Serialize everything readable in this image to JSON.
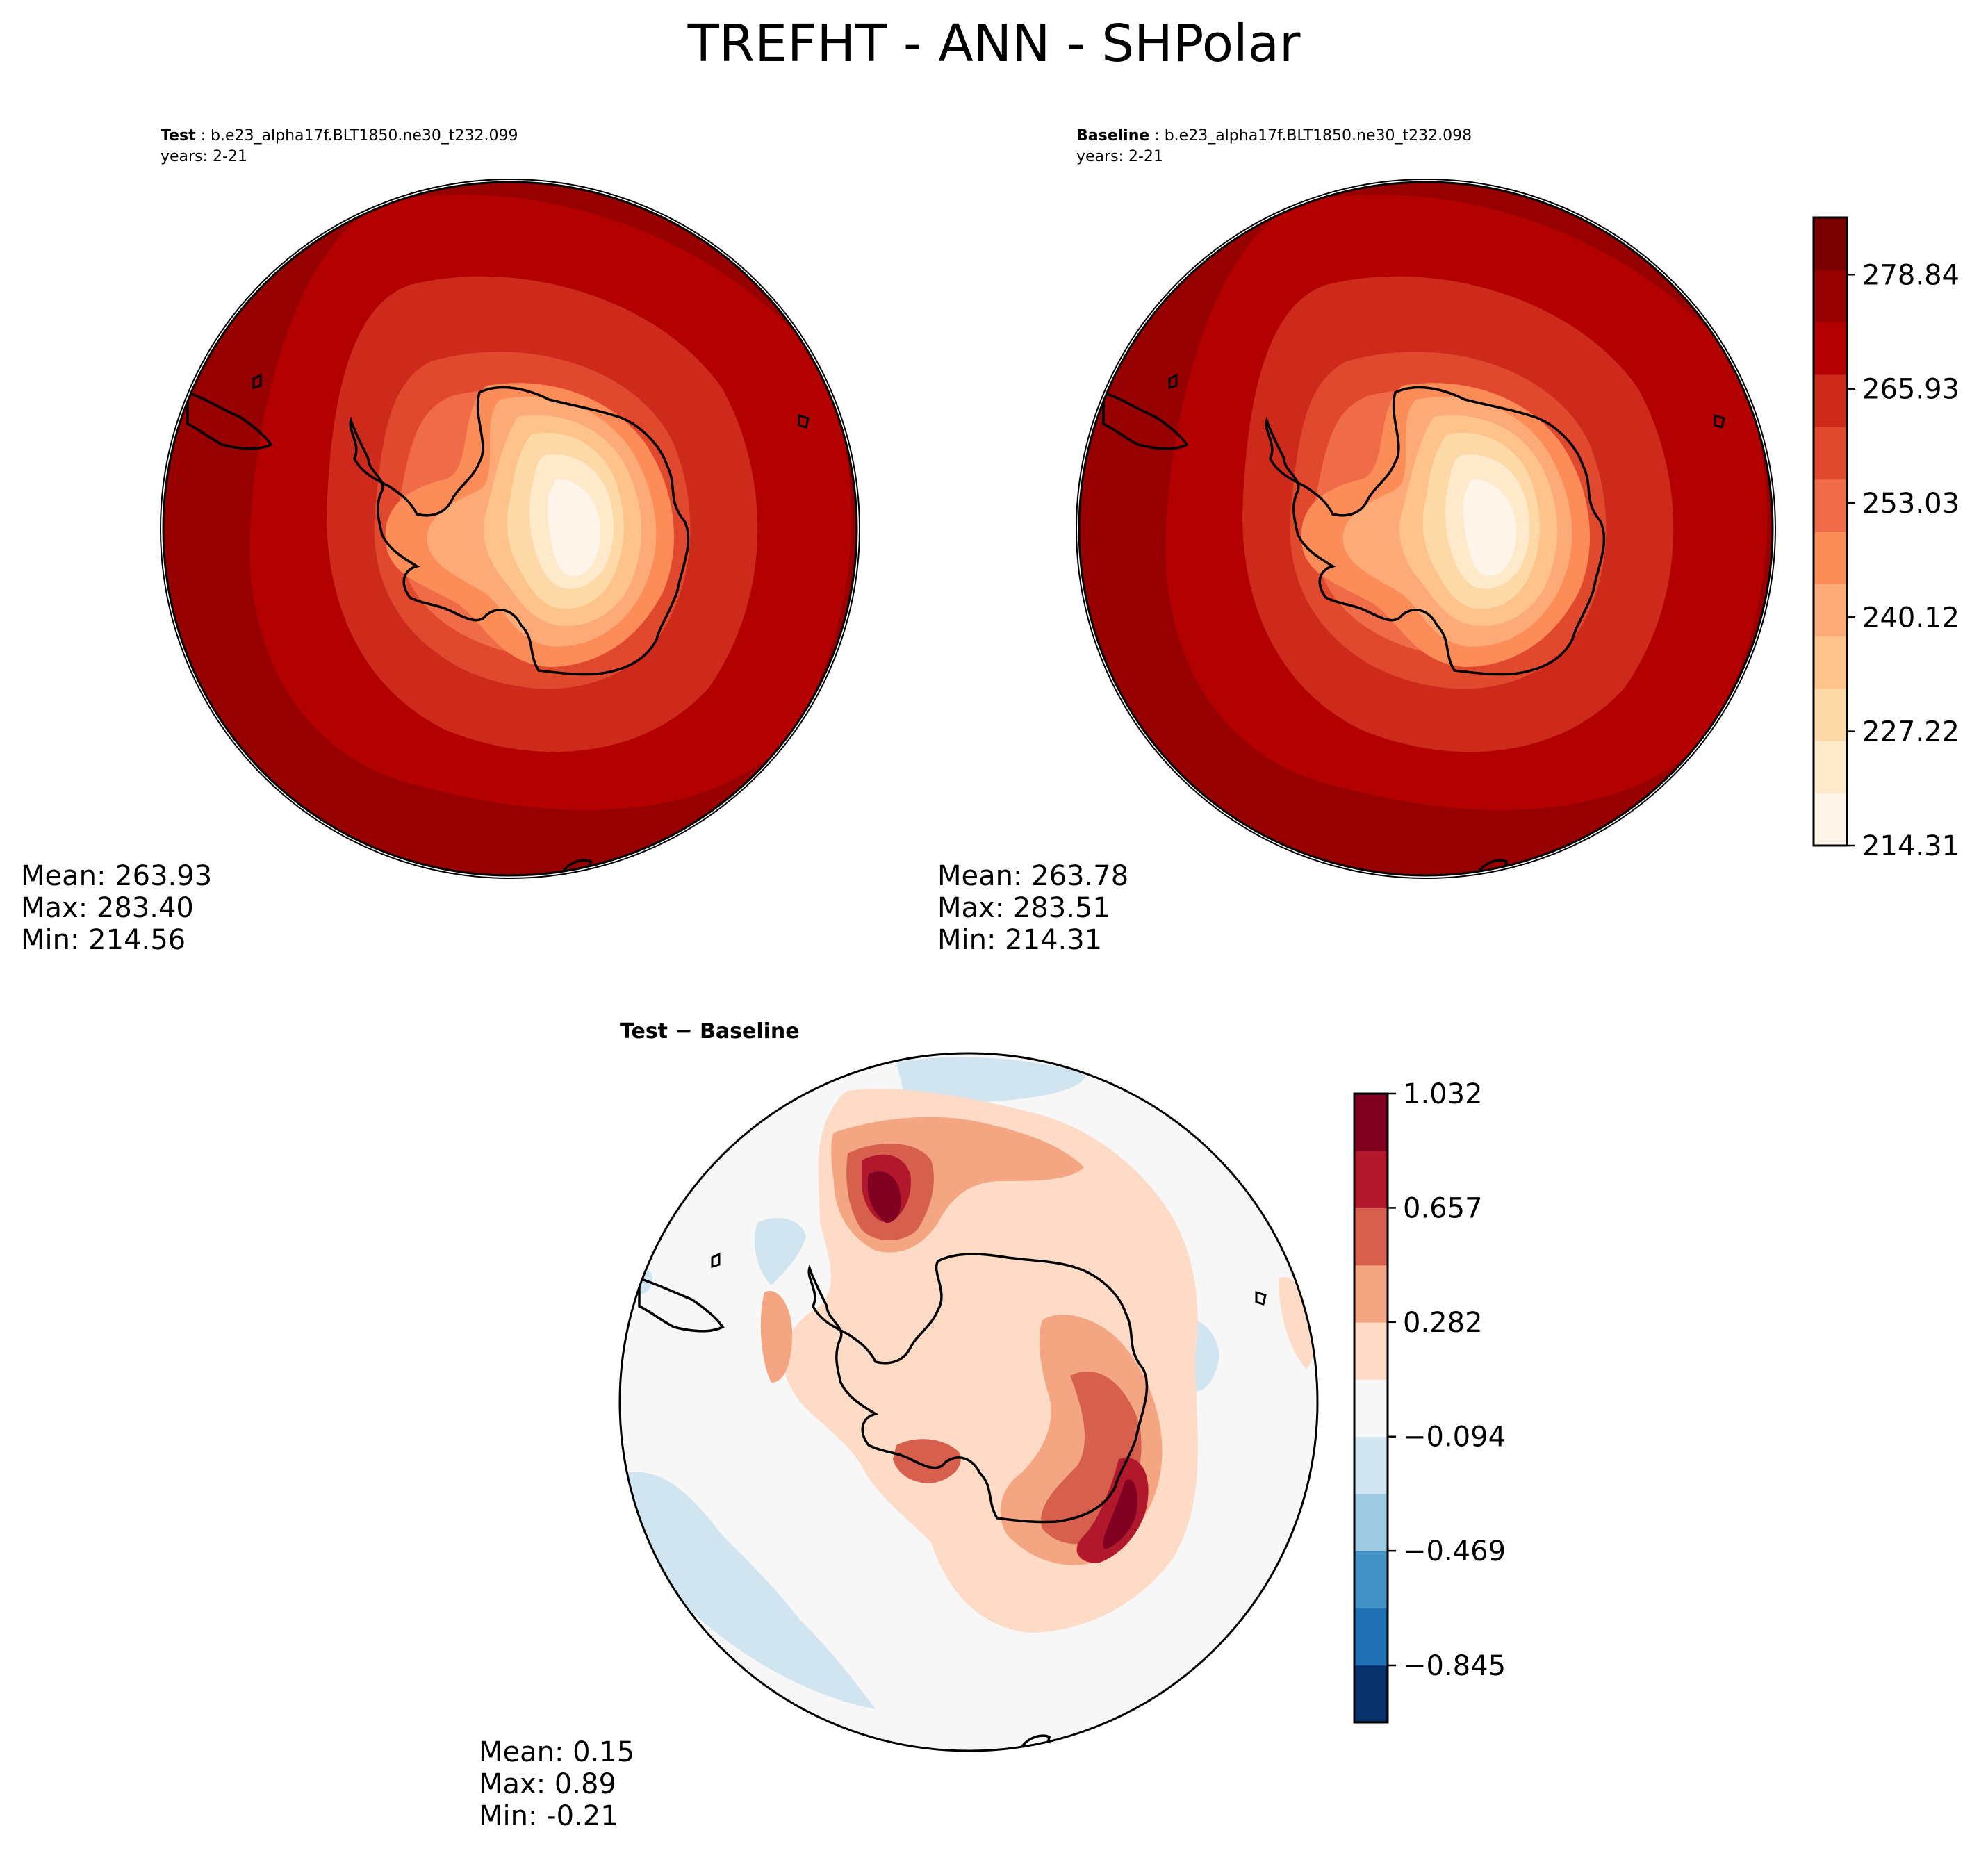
{
  "title": "TREFHT - ANN - SHPolar",
  "panels": {
    "test": {
      "label": "Test",
      "case": "b.e23_alpha17f.BLT1850.ne30_t232.099",
      "years": "years: 2-21",
      "stats": {
        "mean": "Mean: 263.93",
        "max": "Max: 283.40",
        "min": "Min: 214.56"
      }
    },
    "baseline": {
      "label": "Baseline",
      "case": "b.e23_alpha17f.BLT1850.ne30_t232.098",
      "years": "years: 2-21",
      "stats": {
        "mean": "Mean: 263.78",
        "max": "Max: 283.51",
        "min": "Min: 214.31"
      }
    },
    "diff": {
      "label": "Test − Baseline",
      "stats": {
        "mean": "Mean:  0.15",
        "max": "Max:  0.89",
        "min": "Min: -0.21"
      }
    }
  },
  "chart_data": [
    {
      "type": "contour",
      "panel": "test",
      "projection": "south polar stereographic",
      "variable": "TREFHT",
      "season": "ANN",
      "mean": 263.93,
      "max": 283.4,
      "min": 214.56
    },
    {
      "type": "contour",
      "panel": "baseline",
      "projection": "south polar stereographic",
      "variable": "TREFHT",
      "season": "ANN",
      "mean": 263.78,
      "max": 283.51,
      "min": 214.31
    },
    {
      "type": "colorbar",
      "panel": "test-baseline-shared",
      "colormap": "Reds",
      "range": [
        214.31,
        285.3
      ],
      "levels": 13,
      "tick_values": [
        214.31,
        227.22,
        240.12,
        253.03,
        265.93,
        278.84
      ],
      "tick_labels": [
        "214.31",
        "227.22",
        "240.12",
        "253.03",
        "265.93",
        "278.84"
      ],
      "colors": [
        "#fff5eb",
        "#feeacb",
        "#fdd9a8",
        "#fdc38a",
        "#fcaa78",
        "#fc8d59",
        "#f06b47",
        "#e0492e",
        "#cd2a1b",
        "#b30000",
        "#960000",
        "#7a0000"
      ]
    },
    {
      "type": "contour",
      "panel": "diff",
      "projection": "south polar stereographic",
      "mean": 0.15,
      "max": 0.89,
      "min": -0.21
    },
    {
      "type": "colorbar",
      "panel": "diff",
      "colormap": "RdBu_r",
      "range": [
        -1.032,
        1.032
      ],
      "levels": 12,
      "tick_values": [
        1.032,
        0.657,
        0.282,
        -0.094,
        -0.469,
        -0.845
      ],
      "tick_labels": [
        "1.032",
        "0.657",
        "0.282",
        "−0.094",
        "−0.469",
        "−0.845"
      ],
      "colors": [
        "#08306b",
        "#2171b5",
        "#4292c6",
        "#9ecae1",
        "#d1e5f0",
        "#f7f7f7",
        "#fddbc7",
        "#f4a582",
        "#d6604d",
        "#b2182b",
        "#7f0020"
      ]
    }
  ]
}
